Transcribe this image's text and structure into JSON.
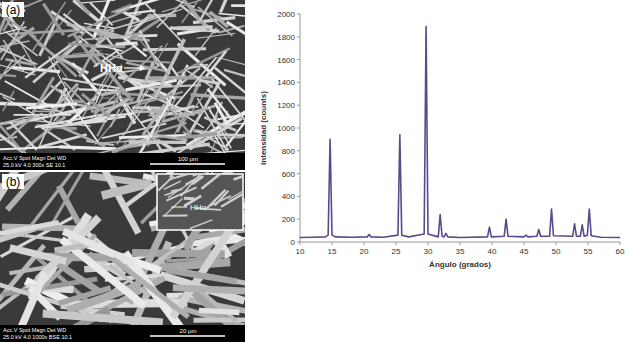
{
  "chart_data": {
    "type": "line",
    "x_label": "Ángulo (grados)",
    "y_label": "Intensidad (counts)",
    "x": [
      10,
      12,
      14,
      14.4,
      14.7,
      15.0,
      15.5,
      18,
      20.5,
      20.8,
      21.1,
      23,
      25.3,
      25.6,
      25.9,
      27,
      29.4,
      29.7,
      30.0,
      31.6,
      31.9,
      32.2,
      32.5,
      32.8,
      33.1,
      35,
      39.3,
      39.6,
      39.9,
      41.9,
      42.2,
      42.5,
      45.0,
      45.3,
      45.6,
      47.0,
      47.3,
      47.6,
      49.0,
      49.3,
      49.6,
      52.6,
      52.9,
      53.2,
      53.8,
      54.1,
      54.4,
      54.9,
      55.2,
      55.5,
      57,
      60
    ],
    "values": [
      40,
      42,
      45,
      60,
      900,
      60,
      45,
      42,
      45,
      65,
      45,
      42,
      60,
      940,
      60,
      45,
      70,
      1890,
      70,
      45,
      240,
      50,
      45,
      75,
      45,
      40,
      45,
      130,
      45,
      50,
      200,
      50,
      45,
      60,
      45,
      50,
      110,
      50,
      50,
      290,
      55,
      50,
      160,
      50,
      50,
      150,
      50,
      60,
      290,
      55,
      42,
      40
    ],
    "color": "#5b4a8b",
    "xlim": [
      10,
      60
    ],
    "xticks": [
      10,
      15,
      20,
      25,
      30,
      35,
      40,
      45,
      50,
      55,
      60
    ],
    "ylim": [
      0,
      2000
    ],
    "yticks": [
      0,
      200,
      400,
      600,
      800,
      1000,
      1200,
      1400,
      1600,
      1800,
      2000
    ],
    "grid": false
  },
  "panels": [
    {
      "label": "(a)",
      "annotation": "HHα",
      "info_header": "Acc.V  Spot Magn   Det  WD",
      "info_values": "25.0 kV 4.0   300x   SE  10.1",
      "scale_bar": "100 μm"
    },
    {
      "label": "(b)",
      "annotation": "HHα",
      "info_header": "Acc.V  Spot Magn   Det  WD",
      "info_values": "25.0 kV 4.0   1000x  BSE 10.1",
      "scale_bar": "20 μm"
    }
  ]
}
